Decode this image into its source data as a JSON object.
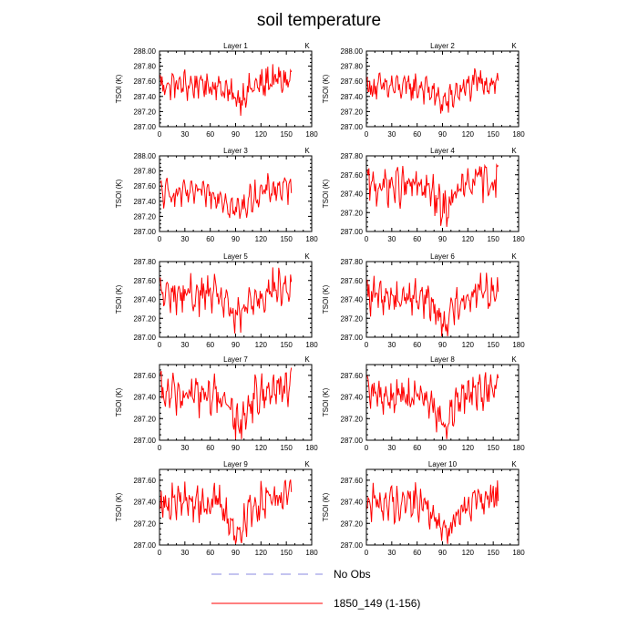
{
  "title": "soil temperature",
  "ylabel": "TSOI  (K)",
  "units": "K",
  "legend": [
    {
      "label": "No Obs",
      "color": "#8a8ae0",
      "style": "dashed"
    },
    {
      "label": "1850_149 (1-156)",
      "color": "#ff0000",
      "style": "solid"
    }
  ],
  "chart_data": [
    {
      "type": "line",
      "title": "Layer 1",
      "xlim": [
        0,
        180
      ],
      "ylim": [
        287.0,
        288.0
      ],
      "xticks": [
        0,
        30,
        60,
        90,
        120,
        150,
        180
      ],
      "yticks": [
        "287.00",
        "287.20",
        "287.40",
        "287.60",
        "287.80",
        "288.00"
      ],
      "series": [
        {
          "name": "1850_149 (1-156)",
          "x_range": [
            1,
            156
          ],
          "base": 287.55,
          "amp": 0.15,
          "dip": 0.18
        }
      ]
    },
    {
      "type": "line",
      "title": "Layer 2",
      "xlim": [
        0,
        180
      ],
      "ylim": [
        287.0,
        288.0
      ],
      "xticks": [
        0,
        30,
        60,
        90,
        120,
        150,
        180
      ],
      "yticks": [
        "287.00",
        "287.20",
        "287.40",
        "287.60",
        "287.80",
        "288.00"
      ],
      "series": [
        {
          "name": "1850_149 (1-156)",
          "x_range": [
            1,
            156
          ],
          "base": 287.52,
          "amp": 0.14,
          "dip": 0.2
        }
      ]
    },
    {
      "type": "line",
      "title": "Layer 3",
      "xlim": [
        0,
        180
      ],
      "ylim": [
        287.0,
        288.0
      ],
      "xticks": [
        0,
        30,
        60,
        90,
        120,
        150,
        180
      ],
      "yticks": [
        "287.00",
        "287.20",
        "287.40",
        "287.60",
        "287.80",
        "288.00"
      ],
      "series": [
        {
          "name": "1850_149 (1-156)",
          "x_range": [
            1,
            156
          ],
          "base": 287.5,
          "amp": 0.14,
          "dip": 0.22
        }
      ]
    },
    {
      "type": "line",
      "title": "Layer 4",
      "xlim": [
        0,
        180
      ],
      "ylim": [
        287.0,
        287.8
      ],
      "xticks": [
        0,
        30,
        60,
        90,
        120,
        150,
        180
      ],
      "yticks": [
        "287.00",
        "287.20",
        "287.40",
        "287.60",
        "287.80"
      ],
      "series": [
        {
          "name": "1850_149 (1-156)",
          "x_range": [
            1,
            156
          ],
          "base": 287.48,
          "amp": 0.15,
          "dip": 0.24
        }
      ]
    },
    {
      "type": "line",
      "title": "Layer 5",
      "xlim": [
        0,
        180
      ],
      "ylim": [
        287.0,
        287.8
      ],
      "xticks": [
        0,
        30,
        60,
        90,
        120,
        150,
        180
      ],
      "yticks": [
        "287.00",
        "287.20",
        "287.40",
        "287.60",
        "287.80"
      ],
      "series": [
        {
          "name": "1850_149 (1-156)",
          "x_range": [
            1,
            156
          ],
          "base": 287.45,
          "amp": 0.15,
          "dip": 0.25
        }
      ]
    },
    {
      "type": "line",
      "title": "Layer 6",
      "xlim": [
        0,
        180
      ],
      "ylim": [
        287.0,
        287.8
      ],
      "xticks": [
        0,
        30,
        60,
        90,
        120,
        150,
        180
      ],
      "yticks": [
        "287.00",
        "287.20",
        "287.40",
        "287.60",
        "287.80"
      ],
      "series": [
        {
          "name": "1850_149 (1-156)",
          "x_range": [
            1,
            156
          ],
          "base": 287.43,
          "amp": 0.14,
          "dip": 0.26
        }
      ]
    },
    {
      "type": "line",
      "title": "Layer 7",
      "xlim": [
        0,
        180
      ],
      "ylim": [
        287.0,
        287.7
      ],
      "xticks": [
        0,
        30,
        60,
        90,
        120,
        150,
        180
      ],
      "yticks": [
        "287.00",
        "287.20",
        "287.40",
        "287.60"
      ],
      "series": [
        {
          "name": "1850_149 (1-156)",
          "x_range": [
            1,
            156
          ],
          "base": 287.42,
          "amp": 0.14,
          "dip": 0.26
        }
      ]
    },
    {
      "type": "line",
      "title": "Layer 8",
      "xlim": [
        0,
        180
      ],
      "ylim": [
        287.0,
        287.7
      ],
      "xticks": [
        0,
        30,
        60,
        90,
        120,
        150,
        180
      ],
      "yticks": [
        "287.00",
        "287.20",
        "287.40",
        "287.60"
      ],
      "series": [
        {
          "name": "1850_149 (1-156)",
          "x_range": [
            1,
            156
          ],
          "base": 287.41,
          "amp": 0.13,
          "dip": 0.27
        }
      ]
    },
    {
      "type": "line",
      "title": "Layer 9",
      "xlim": [
        0,
        180
      ],
      "ylim": [
        287.0,
        287.7
      ],
      "xticks": [
        0,
        30,
        60,
        90,
        120,
        150,
        180
      ],
      "yticks": [
        "287.00",
        "287.20",
        "287.40",
        "287.60"
      ],
      "series": [
        {
          "name": "1850_149 (1-156)",
          "x_range": [
            1,
            156
          ],
          "base": 287.4,
          "amp": 0.13,
          "dip": 0.28
        }
      ]
    },
    {
      "type": "line",
      "title": "Layer 10",
      "xlim": [
        0,
        180
      ],
      "ylim": [
        287.0,
        287.7
      ],
      "xticks": [
        0,
        30,
        60,
        90,
        120,
        150,
        180
      ],
      "yticks": [
        "287.00",
        "287.20",
        "287.40",
        "287.60"
      ],
      "series": [
        {
          "name": "1850_149 (1-156)",
          "x_range": [
            1,
            156
          ],
          "base": 287.39,
          "amp": 0.13,
          "dip": 0.28
        }
      ]
    }
  ]
}
